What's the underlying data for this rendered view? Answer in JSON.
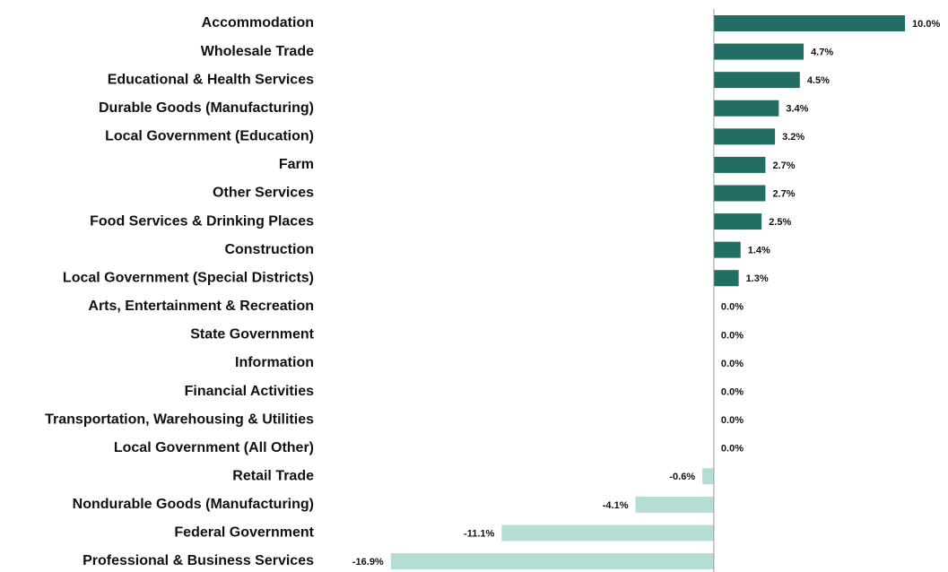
{
  "chart_data": {
    "type": "barh",
    "categories": [
      "Accommodation",
      "Wholesale Trade",
      "Educational & Health Services",
      "Durable Goods (Manufacturing)",
      "Local Government (Education)",
      "Farm",
      "Other Services",
      "Food Services & Drinking Places",
      "Construction",
      "Local Government (Special Districts)",
      "Arts, Entertainment & Recreation",
      "State Government",
      "Information",
      "Financial Activities",
      "Transportation, Warehousing & Utilities",
      "Local Government (All Other)",
      "Retail Trade",
      "Nondurable Goods (Manufacturing)",
      "Federal Government",
      "Professional & Business Services"
    ],
    "values": [
      10.0,
      4.7,
      4.5,
      3.4,
      3.2,
      2.7,
      2.7,
      2.5,
      1.4,
      1.3,
      0.0,
      0.0,
      0.0,
      0.0,
      0.0,
      0.0,
      -0.6,
      -4.1,
      -11.1,
      -16.9
    ],
    "value_labels": [
      "10.0%",
      "4.7%",
      "4.5%",
      "3.4%",
      "3.2%",
      "2.7%",
      "2.7%",
      "2.5%",
      "1.4%",
      "1.3%",
      "0.0%",
      "0.0%",
      "0.0%",
      "0.0%",
      "0.0%",
      "0.0%",
      "-0.6%",
      "-4.1%",
      "-11.1%",
      "-16.9%"
    ],
    "color": "#236e64",
    "negative_color": "#b4ddd6",
    "xlim": [
      -20.5,
      11.5
    ]
  }
}
